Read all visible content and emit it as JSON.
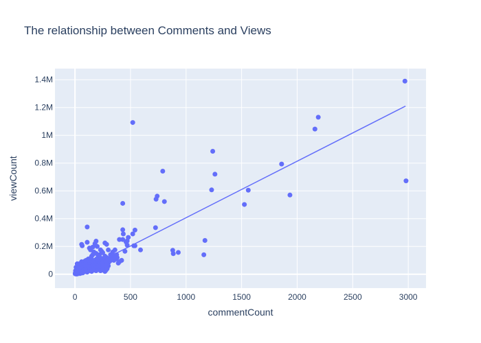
{
  "chart_data": {
    "type": "scatter",
    "title": "The relationship between Comments and Views",
    "xlabel": "commentCount",
    "ylabel": "viewCount",
    "xlim": [
      -180,
      3160
    ],
    "ylim": [
      -100000,
      1480000
    ],
    "x_ticks": [
      0,
      500,
      1000,
      1500,
      2000,
      2500,
      3000
    ],
    "x_tick_labels": [
      "0",
      "500",
      "1000",
      "1500",
      "2000",
      "2500",
      "3000"
    ],
    "y_ticks": [
      0,
      200000,
      400000,
      600000,
      800000,
      1000000,
      1200000,
      1400000
    ],
    "y_tick_labels": [
      "0",
      "0.2M",
      "0.4M",
      "0.6M",
      "0.8M",
      "1M",
      "1.2M",
      "1.4M"
    ],
    "grid": true,
    "colors": {
      "marker": "#636efa",
      "trendline": "#636efa",
      "plot_bg": "#e5ecf6",
      "grid": "#ffffff",
      "text": "#2a3f5f"
    },
    "trendline": {
      "x": [
        0,
        2975
      ],
      "y": [
        0,
        1210000
      ]
    },
    "points": [
      [
        2970,
        1390000
      ],
      [
        2190,
        1130000
      ],
      [
        2160,
        1045000
      ],
      [
        2980,
        672000
      ],
      [
        1860,
        793000
      ],
      [
        1935,
        570000
      ],
      [
        1560,
        605000
      ],
      [
        1525,
        502000
      ],
      [
        1240,
        885000
      ],
      [
        1260,
        720000
      ],
      [
        1230,
        607000
      ],
      [
        520,
        1092000
      ],
      [
        790,
        742000
      ],
      [
        740,
        562000
      ],
      [
        730,
        540000
      ],
      [
        805,
        523000
      ],
      [
        430,
        510000
      ],
      [
        1170,
        243000
      ],
      [
        1160,
        140000
      ],
      [
        880,
        172000
      ],
      [
        885,
        148000
      ],
      [
        930,
        157000
      ],
      [
        725,
        335000
      ],
      [
        540,
        318000
      ],
      [
        520,
        290000
      ],
      [
        480,
        265000
      ],
      [
        540,
        205000
      ],
      [
        530,
        205000
      ],
      [
        590,
        175000
      ],
      [
        430,
        320000
      ],
      [
        435,
        290000
      ],
      [
        400,
        250000
      ],
      [
        430,
        250000
      ],
      [
        470,
        240000
      ],
      [
        460,
        232000
      ],
      [
        470,
        210000
      ],
      [
        450,
        165000
      ],
      [
        360,
        175000
      ],
      [
        340,
        160000
      ],
      [
        345,
        130000
      ],
      [
        370,
        110000
      ],
      [
        350,
        100000
      ],
      [
        420,
        100000
      ],
      [
        390,
        80000
      ],
      [
        400,
        90000
      ],
      [
        300,
        80000
      ],
      [
        110,
        340000
      ],
      [
        110,
        230000
      ],
      [
        60,
        215000
      ],
      [
        65,
        205000
      ],
      [
        190,
        238000
      ],
      [
        180,
        220000
      ],
      [
        200,
        200000
      ],
      [
        160,
        195000
      ],
      [
        130,
        188000
      ],
      [
        140,
        175000
      ],
      [
        170,
        160000
      ],
      [
        230,
        175000
      ],
      [
        270,
        225000
      ],
      [
        285,
        215000
      ],
      [
        300,
        175000
      ],
      [
        320,
        140000
      ],
      [
        250,
        155000
      ],
      [
        270,
        130000
      ],
      [
        210,
        130000
      ],
      [
        150,
        130000
      ],
      [
        120,
        110000
      ],
      [
        90,
        95000
      ],
      [
        100,
        100000
      ],
      [
        80,
        80000
      ],
      [
        60,
        90000
      ],
      [
        40,
        75000
      ],
      [
        20,
        75000
      ],
      [
        30,
        60000
      ],
      [
        50,
        65000
      ],
      [
        70,
        70000
      ],
      [
        10,
        50000
      ],
      [
        15,
        40000
      ],
      [
        25,
        35000
      ],
      [
        5,
        25000
      ],
      [
        8,
        15000
      ],
      [
        3,
        8000
      ],
      [
        2,
        3000
      ],
      [
        12,
        10000
      ],
      [
        18,
        20000
      ],
      [
        35,
        30000
      ],
      [
        45,
        25000
      ],
      [
        55,
        40000
      ],
      [
        65,
        50000
      ],
      [
        75,
        45000
      ],
      [
        85,
        60000
      ],
      [
        95,
        55000
      ],
      [
        105,
        70000
      ],
      [
        115,
        60000
      ],
      [
        125,
        75000
      ],
      [
        135,
        80000
      ],
      [
        145,
        70000
      ],
      [
        155,
        90000
      ],
      [
        165,
        85000
      ],
      [
        175,
        100000
      ],
      [
        185,
        95000
      ],
      [
        195,
        110000
      ],
      [
        205,
        90000
      ],
      [
        215,
        80000
      ],
      [
        225,
        100000
      ],
      [
        235,
        115000
      ],
      [
        245,
        95000
      ],
      [
        255,
        105000
      ],
      [
        265,
        90000
      ],
      [
        275,
        110000
      ],
      [
        285,
        120000
      ],
      [
        295,
        100000
      ],
      [
        305,
        110000
      ],
      [
        315,
        95000
      ],
      [
        335,
        120000
      ],
      [
        355,
        125000
      ],
      [
        375,
        140000
      ],
      [
        380,
        120000
      ],
      [
        325,
        105000
      ],
      [
        40,
        15000
      ],
      [
        60,
        20000
      ],
      [
        80,
        25000
      ],
      [
        100,
        30000
      ],
      [
        120,
        35000
      ],
      [
        140,
        40000
      ],
      [
        160,
        35000
      ],
      [
        180,
        45000
      ],
      [
        200,
        40000
      ],
      [
        220,
        50000
      ],
      [
        240,
        55000
      ],
      [
        260,
        45000
      ],
      [
        280,
        30000
      ],
      [
        300,
        60000
      ],
      [
        290,
        40000
      ],
      [
        270,
        20000
      ],
      [
        250,
        30000
      ],
      [
        230,
        25000
      ],
      [
        210,
        35000
      ],
      [
        190,
        25000
      ],
      [
        170,
        30000
      ],
      [
        150,
        20000
      ],
      [
        130,
        25000
      ],
      [
        110,
        15000
      ],
      [
        90,
        20000
      ],
      [
        70,
        10000
      ],
      [
        50,
        12000
      ],
      [
        30,
        5000
      ],
      [
        20,
        2000
      ],
      [
        10,
        1000
      ],
      [
        45,
        5000
      ],
      [
        55,
        8000
      ],
      [
        65,
        12000
      ],
      [
        75,
        15000
      ],
      [
        85,
        18000
      ],
      [
        95,
        22000
      ],
      [
        60,
        35000
      ],
      [
        80,
        38000
      ],
      [
        100,
        45000
      ],
      [
        120,
        50000
      ],
      [
        140,
        55000
      ],
      [
        160,
        60000
      ],
      [
        180,
        65000
      ],
      [
        200,
        70000
      ],
      [
        220,
        75000
      ],
      [
        240,
        80000
      ],
      [
        260,
        70000
      ],
      [
        280,
        65000
      ],
      [
        50,
        50000
      ],
      [
        70,
        55000
      ],
      [
        90,
        40000
      ],
      [
        110,
        65000
      ],
      [
        130,
        55000
      ],
      [
        150,
        45000
      ],
      [
        170,
        50000
      ],
      [
        190,
        60000
      ],
      [
        210,
        55000
      ],
      [
        230,
        60000
      ],
      [
        250,
        65000
      ],
      [
        190,
        150000
      ],
      [
        220,
        140000
      ],
      [
        240,
        165000
      ],
      [
        160,
        140000
      ],
      [
        145,
        120000
      ],
      [
        130,
        100000
      ],
      [
        110,
        85000
      ],
      [
        95,
        75000
      ],
      [
        75,
        65000
      ],
      [
        55,
        55000
      ],
      [
        35,
        45000
      ],
      [
        25,
        20000
      ],
      [
        15,
        5000
      ]
    ]
  }
}
